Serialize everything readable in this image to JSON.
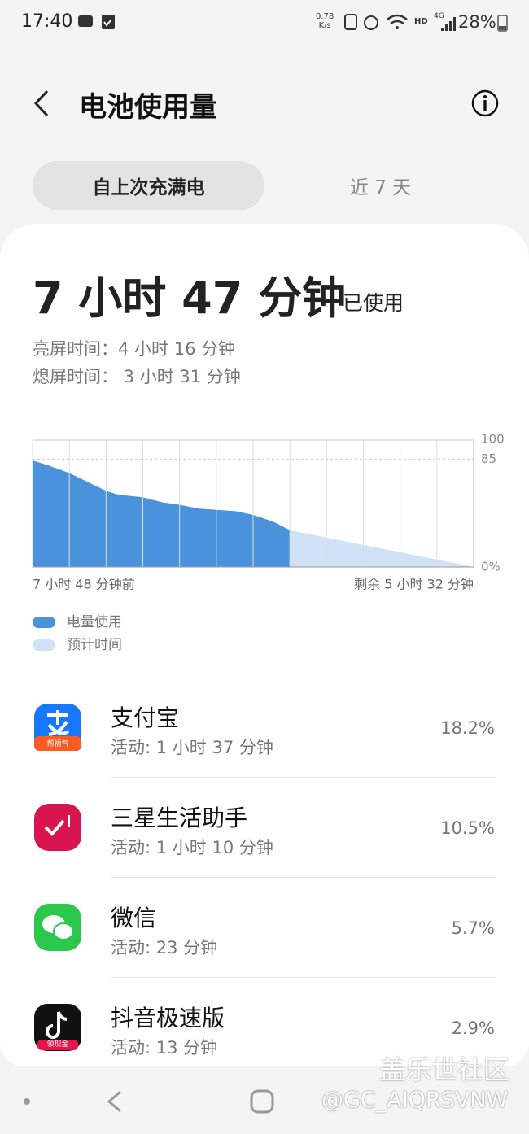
{
  "status_bar": {
    "time": "17:40",
    "speed_value": "0.78",
    "speed_unit": "K/s",
    "hd": "HD",
    "network": "4G",
    "battery": "28%"
  },
  "header": {
    "title": "电池使用量"
  },
  "tabs": [
    "自上次充满电",
    "近 7 天"
  ],
  "summary": {
    "total": "7 小时 47 分钟",
    "total_suffix": "已使用",
    "screen_on_label": "亮屏时间：",
    "screen_on_value": "4 小时 16 分钟",
    "screen_off_label": "熄屏时间：",
    "screen_off_value": "3 小时 31 分钟"
  },
  "chart_data": {
    "type": "area",
    "x_start_label": "7 小时 48 分钟前",
    "x_end_label": "剩余 5 小时 32 分钟",
    "xlim": [
      0,
      12
    ],
    "xticks": [
      0,
      1,
      2,
      3,
      4,
      5,
      6,
      7,
      8,
      9,
      10,
      11,
      12
    ],
    "ylim": [
      0,
      100
    ],
    "yticks": [
      100,
      85,
      {
        "value": 0,
        "label": "0%"
      }
    ],
    "series": [
      {
        "name": "电量使用",
        "color": "#4a93dc",
        "x": [
          0,
          0.44,
          1,
          2,
          2.33,
          3,
          3.53,
          4,
          4.53,
          5,
          5.53,
          6,
          6.53,
          7
        ],
        "values": [
          84,
          80,
          74,
          60,
          57,
          55,
          51,
          49,
          46,
          45,
          44,
          41,
          36,
          29
        ]
      },
      {
        "name": "预计时间",
        "color": "#cfe2f6",
        "x": [
          7,
          12
        ],
        "values": [
          29,
          0
        ]
      }
    ]
  },
  "apps": [
    {
      "name": "支付宝",
      "detail": "活动: 1 小时 37 分钟",
      "percent": "18.2%",
      "badge": "帮福气"
    },
    {
      "name": "三星生活助手",
      "detail": "活动: 1 小时 10 分钟",
      "percent": "10.5%"
    },
    {
      "name": "微信",
      "detail": "活动: 23 分钟",
      "percent": "5.7%"
    },
    {
      "name": "抖音极速版",
      "detail": "活动: 13 分钟",
      "percent": "2.9%",
      "badge": "领现金"
    }
  ],
  "watermark": {
    "site": "盖乐世社区",
    "user": "@GC_AIQRSVNW"
  }
}
